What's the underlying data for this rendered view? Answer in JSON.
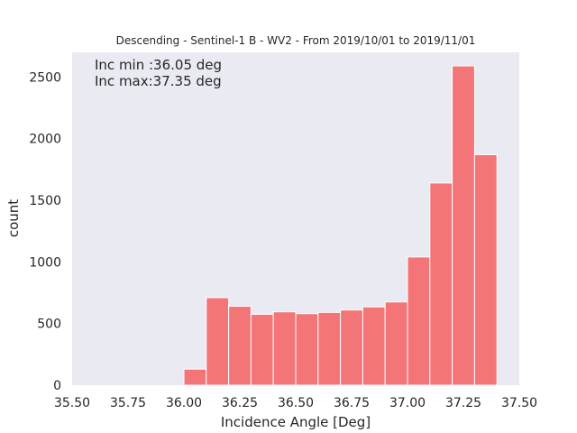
{
  "chart_data": {
    "type": "bar",
    "title": "Descending - Sentinel-1 B - WV2 - From 2019/10/01 to 2019/11/01",
    "xlabel": "Incidence Angle [Deg]",
    "ylabel": "count",
    "xlim": [
      35.5,
      37.5
    ],
    "ylim": [
      0,
      2700
    ],
    "xticks": [
      "35.50",
      "35.75",
      "36.00",
      "36.25",
      "36.50",
      "36.75",
      "37.00",
      "37.25",
      "37.50"
    ],
    "yticks": [
      "0",
      "500",
      "1000",
      "1500",
      "2000",
      "2500"
    ],
    "grid": false,
    "bin_edges": [
      36.0,
      36.1,
      36.2,
      36.3,
      36.4,
      36.5,
      36.6,
      36.7,
      36.8,
      36.9,
      37.0,
      37.1,
      37.2,
      37.3,
      37.4
    ],
    "values": [
      130,
      710,
      640,
      575,
      595,
      580,
      590,
      610,
      635,
      675,
      1040,
      1640,
      2590,
      1870
    ],
    "bar_color": "#f47577",
    "plot_background": "#eaeaf2",
    "annotations": [
      "Inc min :36.05 deg",
      "Inc max:37.35 deg"
    ]
  }
}
